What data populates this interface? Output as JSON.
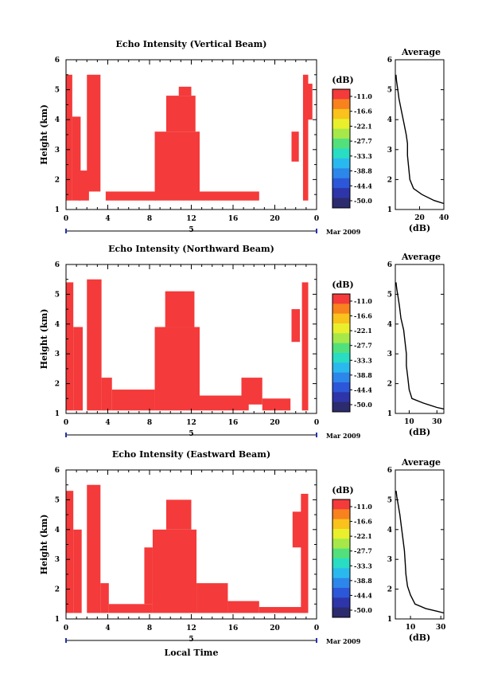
{
  "chart_data": [
    {
      "type": "heatmap",
      "title": "Echo Intensity (Vertical Beam)",
      "xlabel": "",
      "ylabel": "Height (km)",
      "xlim": [
        0,
        24
      ],
      "ylim": [
        1,
        6
      ],
      "x_ticks": [
        "0",
        "4",
        "8",
        "12",
        "16",
        "20",
        "0"
      ],
      "y_ticks": [
        "1",
        "2",
        "3",
        "4",
        "5",
        "6"
      ],
      "date_day": "5",
      "date_month": "Mar 2009",
      "colorbar": {
        "unit": "(dB)",
        "labels": [
          "-11.0",
          "-16.6",
          "-22.1",
          "-27.7",
          "-33.3",
          "-38.8",
          "-44.4",
          "-50.0"
        ]
      },
      "echo_regions": [
        {
          "t0": 0.0,
          "t1": 0.6,
          "h0": 1.3,
          "h1": 5.5
        },
        {
          "t0": 0.6,
          "t1": 1.4,
          "h0": 1.3,
          "h1": 4.1
        },
        {
          "t0": 2.0,
          "t1": 3.3,
          "h0": 1.6,
          "h1": 5.5
        },
        {
          "t0": 1.2,
          "t1": 2.2,
          "h0": 1.3,
          "h1": 2.3
        },
        {
          "t0": 3.8,
          "t1": 8.6,
          "h0": 1.3,
          "h1": 1.6
        },
        {
          "t0": 8.5,
          "t1": 12.8,
          "h0": 1.3,
          "h1": 3.6
        },
        {
          "t0": 9.6,
          "t1": 12.4,
          "h0": 3.6,
          "h1": 4.8
        },
        {
          "t0": 10.8,
          "t1": 12.0,
          "h0": 4.8,
          "h1": 5.1
        },
        {
          "t0": 12.8,
          "t1": 18.5,
          "h0": 1.3,
          "h1": 1.6
        },
        {
          "t0": 21.6,
          "t1": 22.3,
          "h0": 2.6,
          "h1": 3.6
        },
        {
          "t0": 22.7,
          "t1": 23.2,
          "h0": 1.3,
          "h1": 5.5
        },
        {
          "t0": 23.2,
          "t1": 23.6,
          "h0": 4.0,
          "h1": 5.2
        }
      ],
      "profile": {
        "title": "Average",
        "xlabel": "(dB)",
        "x_ticks": [
          "20",
          "40"
        ],
        "xlim": [
          0,
          40
        ],
        "points": [
          [
            0.5,
            5.5
          ],
          [
            1,
            5.3
          ],
          [
            2,
            5.0
          ],
          [
            3,
            4.7
          ],
          [
            5,
            4.3
          ],
          [
            7,
            3.9
          ],
          [
            9,
            3.5
          ],
          [
            10,
            3.2
          ],
          [
            10,
            2.8
          ],
          [
            11,
            2.4
          ],
          [
            12,
            2.0
          ],
          [
            15,
            1.7
          ],
          [
            22,
            1.5
          ],
          [
            32,
            1.3
          ],
          [
            40,
            1.2
          ]
        ]
      }
    },
    {
      "type": "heatmap",
      "title": "Echo Intensity (Northward Beam)",
      "xlabel": "",
      "ylabel": "Height (km)",
      "xlim": [
        0,
        24
      ],
      "ylim": [
        1,
        6
      ],
      "x_ticks": [
        "0",
        "4",
        "8",
        "12",
        "16",
        "20",
        "0"
      ],
      "y_ticks": [
        "1",
        "2",
        "3",
        "4",
        "5",
        "6"
      ],
      "date_day": "5",
      "date_month": "Mar 2009",
      "colorbar": {
        "unit": "(dB)",
        "labels": [
          "-11.0",
          "-16.6",
          "-22.1",
          "-27.7",
          "-33.3",
          "-38.8",
          "-44.4",
          "-50.0"
        ]
      },
      "echo_regions": [
        {
          "t0": 0.0,
          "t1": 0.7,
          "h0": 1.1,
          "h1": 5.4
        },
        {
          "t0": 0.7,
          "t1": 1.6,
          "h0": 1.1,
          "h1": 3.9
        },
        {
          "t0": 2.0,
          "t1": 3.4,
          "h0": 1.1,
          "h1": 5.5
        },
        {
          "t0": 3.4,
          "t1": 4.4,
          "h0": 1.1,
          "h1": 2.2
        },
        {
          "t0": 4.4,
          "t1": 8.5,
          "h0": 1.1,
          "h1": 1.8
        },
        {
          "t0": 8.5,
          "t1": 12.8,
          "h0": 1.1,
          "h1": 3.9
        },
        {
          "t0": 9.5,
          "t1": 12.3,
          "h0": 3.9,
          "h1": 5.1
        },
        {
          "t0": 12.8,
          "t1": 17.5,
          "h0": 1.1,
          "h1": 1.6
        },
        {
          "t0": 16.8,
          "t1": 18.8,
          "h0": 1.3,
          "h1": 2.2
        },
        {
          "t0": 18.8,
          "t1": 21.5,
          "h0": 1.1,
          "h1": 1.5
        },
        {
          "t0": 21.6,
          "t1": 22.4,
          "h0": 3.4,
          "h1": 4.5
        },
        {
          "t0": 22.6,
          "t1": 23.2,
          "h0": 1.1,
          "h1": 5.4
        }
      ],
      "profile": {
        "title": "Average",
        "xlabel": "(dB)",
        "x_ticks": [
          "10",
          "30"
        ],
        "xlim": [
          0,
          35
        ],
        "points": [
          [
            0.5,
            5.4
          ],
          [
            1,
            5.2
          ],
          [
            2,
            4.9
          ],
          [
            3,
            4.6
          ],
          [
            4,
            4.2
          ],
          [
            6,
            3.8
          ],
          [
            7,
            3.4
          ],
          [
            8,
            3.0
          ],
          [
            8,
            2.6
          ],
          [
            9,
            2.2
          ],
          [
            10,
            1.8
          ],
          [
            12,
            1.5
          ],
          [
            20,
            1.35
          ],
          [
            30,
            1.2
          ],
          [
            35,
            1.15
          ]
        ]
      }
    },
    {
      "type": "heatmap",
      "title": "Echo Intensity (Eastward Beam)",
      "xlabel": "Local Time",
      "ylabel": "Height (km)",
      "xlim": [
        0,
        24
      ],
      "ylim": [
        1,
        6
      ],
      "x_ticks": [
        "0",
        "4",
        "8",
        "12",
        "16",
        "20",
        "0"
      ],
      "y_ticks": [
        "1",
        "2",
        "3",
        "4",
        "5",
        "6"
      ],
      "date_day": "5",
      "date_month": "Mar 2009",
      "colorbar": {
        "unit": "(dB)",
        "labels": [
          "-11.0",
          "-16.6",
          "-22.1",
          "-27.7",
          "-33.3",
          "-38.8",
          "-44.4",
          "-50.0"
        ]
      },
      "echo_regions": [
        {
          "t0": 0.0,
          "t1": 0.7,
          "h0": 1.2,
          "h1": 5.3
        },
        {
          "t0": 0.7,
          "t1": 1.5,
          "h0": 1.2,
          "h1": 4.0
        },
        {
          "t0": 2.0,
          "t1": 3.3,
          "h0": 1.2,
          "h1": 5.5
        },
        {
          "t0": 3.3,
          "t1": 4.1,
          "h0": 1.2,
          "h1": 2.2
        },
        {
          "t0": 4.1,
          "t1": 8.3,
          "h0": 1.2,
          "h1": 1.5
        },
        {
          "t0": 7.5,
          "t1": 8.3,
          "h0": 1.5,
          "h1": 3.4
        },
        {
          "t0": 8.3,
          "t1": 12.5,
          "h0": 1.2,
          "h1": 4.0
        },
        {
          "t0": 9.6,
          "t1": 12.0,
          "h0": 4.0,
          "h1": 5.0
        },
        {
          "t0": 12.5,
          "t1": 15.5,
          "h0": 1.2,
          "h1": 2.2
        },
        {
          "t0": 15.5,
          "t1": 18.5,
          "h0": 1.2,
          "h1": 1.6
        },
        {
          "t0": 18.5,
          "t1": 23.0,
          "h0": 1.2,
          "h1": 1.4
        },
        {
          "t0": 21.7,
          "t1": 22.6,
          "h0": 3.4,
          "h1": 4.6
        },
        {
          "t0": 22.5,
          "t1": 23.2,
          "h0": 1.2,
          "h1": 5.2
        }
      ],
      "profile": {
        "title": "Average",
        "xlabel": "(dB)",
        "x_ticks": [
          "10",
          "30"
        ],
        "xlim": [
          0,
          32
        ],
        "points": [
          [
            0.5,
            5.3
          ],
          [
            1,
            5.1
          ],
          [
            2,
            4.8
          ],
          [
            3,
            4.5
          ],
          [
            4,
            4.1
          ],
          [
            5,
            3.7
          ],
          [
            6,
            3.3
          ],
          [
            6.5,
            2.9
          ],
          [
            7,
            2.5
          ],
          [
            8,
            2.1
          ],
          [
            10,
            1.8
          ],
          [
            13,
            1.5
          ],
          [
            20,
            1.35
          ],
          [
            28,
            1.25
          ],
          [
            32,
            1.2
          ]
        ]
      }
    }
  ]
}
